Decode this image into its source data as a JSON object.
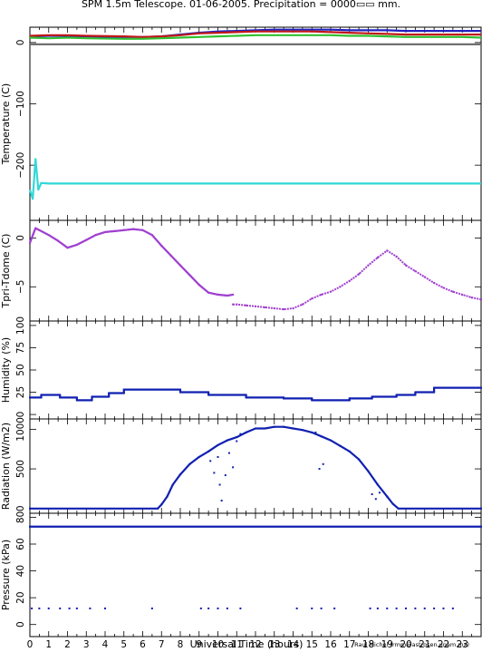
{
  "title": "SPM 1.5m Telescope. 01-06-2005. Precipitation = 0000▭▭ mm.",
  "credit": "Raul Michel (rmm@astrosen.unam.mx)",
  "colors": {
    "temp_blue": "#2020c0",
    "temp_red": "#c01818",
    "temp_green": "#30c030",
    "temp_gray": "#707070",
    "temp_cyan": "#30d8d8",
    "purple": "#a040d0",
    "navy": "#1020b0"
  },
  "chart_data": [
    {
      "id": "temperature",
      "type": "line",
      "ylabel": "Temperature (C)",
      "yticks": [
        0,
        -100,
        -200
      ],
      "ylim": [
        -290,
        25
      ],
      "xlim": [
        0,
        24
      ],
      "series": [
        {
          "color": "#2020c0",
          "x": [
            0,
            1,
            2,
            3,
            5,
            6,
            7,
            8,
            9,
            10,
            11,
            12,
            13,
            14,
            15,
            16,
            17,
            18,
            19,
            20,
            21,
            22,
            23,
            24
          ],
          "y": [
            10,
            11,
            11,
            10,
            9,
            9,
            10,
            13,
            16,
            18,
            19,
            20,
            21,
            21,
            21,
            21,
            20,
            20,
            20,
            19,
            19,
            19,
            19,
            19
          ]
        },
        {
          "color": "#c01818",
          "x": [
            0,
            1,
            2,
            3,
            5,
            6,
            7,
            8,
            9,
            10,
            11,
            12,
            13,
            14,
            15,
            16,
            17,
            18,
            19,
            20,
            21,
            22,
            23,
            24
          ],
          "y": [
            11,
            12,
            12,
            11,
            10,
            9,
            10,
            12,
            15,
            16,
            17,
            18,
            18,
            18,
            18,
            17,
            16,
            15,
            14,
            13,
            13,
            13,
            13,
            13
          ]
        },
        {
          "color": "#30c030",
          "x": [
            0,
            1,
            2,
            3,
            5,
            6,
            7,
            8,
            9,
            10,
            11,
            12,
            13,
            14,
            15,
            16,
            17,
            18,
            19,
            20,
            21,
            22,
            23,
            24
          ],
          "y": [
            8,
            7,
            8,
            7,
            6,
            6,
            7,
            8,
            9,
            10,
            11,
            12,
            12,
            12,
            12,
            12,
            11,
            11,
            10,
            9,
            9,
            9,
            9,
            8
          ]
        },
        {
          "color": "#707070",
          "x": [
            0,
            24
          ],
          "y": [
            -3,
            -3
          ]
        },
        {
          "color": "#30d8d8",
          "x": [
            0,
            0.15,
            0.3,
            0.45,
            0.6,
            1,
            24
          ],
          "y": [
            -240,
            -255,
            -190,
            -240,
            -229,
            -230,
            -230
          ]
        }
      ]
    },
    {
      "id": "tpri_tdome",
      "type": "scatter",
      "ylabel": "Tpri-Tdome (C)",
      "yticks": [
        0,
        -5
      ],
      "ylim": [
        -8.5,
        1.8
      ],
      "xlim": [
        0,
        24
      ],
      "series": [
        {
          "color": "#a040d0",
          "x": [
            0,
            0.3,
            0.5,
            1,
            1.5,
            2,
            2.5,
            3,
            3.5,
            4,
            4.5,
            5,
            5.5,
            6,
            6.5,
            7,
            7.5,
            8,
            8.5,
            9,
            9.5,
            10,
            10.5,
            10.8
          ],
          "y": [
            -0.5,
            1.0,
            0.8,
            0.3,
            -0.3,
            -1.0,
            -0.7,
            -0.2,
            0.3,
            0.6,
            0.7,
            0.8,
            0.9,
            0.8,
            0.3,
            -0.8,
            -1.8,
            -2.8,
            -3.8,
            -4.8,
            -5.6,
            -5.8,
            -5.9,
            -5.8
          ]
        },
        {
          "color": "#a040d0",
          "x": [
            10.8,
            11,
            11.5,
            12,
            12.5,
            13,
            13.5,
            14,
            14.5,
            15,
            15.5,
            16,
            16.5,
            17,
            17.5,
            18,
            18.5,
            19,
            19.5,
            20,
            20.5,
            21,
            21.5,
            22,
            22.5,
            23,
            23.5,
            24
          ],
          "y": [
            -6.8,
            -6.8,
            -6.9,
            -7.0,
            -7.1,
            -7.2,
            -7.3,
            -7.2,
            -6.8,
            -6.2,
            -5.8,
            -5.5,
            -5.0,
            -4.4,
            -3.7,
            -2.8,
            -2.0,
            -1.3,
            -1.9,
            -2.8,
            -3.4,
            -4.0,
            -4.6,
            -5.1,
            -5.5,
            -5.8,
            -6.1,
            -6.3
          ]
        }
      ]
    },
    {
      "id": "humidity",
      "type": "scatter",
      "ylabel": "Humidity (%)",
      "yticks": [
        0,
        25,
        50,
        75,
        100
      ],
      "ylim": [
        -5,
        105
      ],
      "xlim": [
        0,
        24
      ],
      "series": [
        {
          "color": "#1020b0",
          "x": [
            0,
            0.6,
            0.6,
            1.6,
            1.6,
            2.5,
            2.5,
            3.3,
            3.3,
            4.2,
            4.2,
            5.0,
            5.0,
            8.0,
            8.0,
            9.5,
            9.5,
            11.5,
            11.5,
            13.5,
            13.5,
            15.0,
            15.0,
            17.0,
            17.0,
            18.2,
            18.2,
            19.5,
            19.5,
            20.5,
            20.5,
            21.5,
            21.5,
            24
          ],
          "y": [
            19,
            19,
            22,
            22,
            19,
            19,
            16,
            16,
            20,
            20,
            24,
            24,
            28,
            28,
            25,
            25,
            22,
            22,
            19,
            19,
            18,
            18,
            16,
            16,
            18,
            18,
            20,
            20,
            22,
            22,
            25,
            25,
            30,
            30
          ]
        }
      ]
    },
    {
      "id": "radiation",
      "type": "scatter",
      "ylabel": "Radiation (W/m2)",
      "yticks": [
        0,
        500,
        1000
      ],
      "ylim": [
        -60,
        1130
      ],
      "xlim": [
        0,
        24
      ],
      "series": [
        {
          "color": "#1020b0",
          "x": [
            0,
            6.8,
            7.0,
            7.3,
            7.6,
            8,
            8.5,
            9,
            9.5,
            10,
            10.5,
            11,
            11.5,
            12,
            12.5,
            13,
            13.5,
            14,
            14.5,
            15,
            15.5,
            16,
            16.5,
            17,
            17.5,
            18,
            18.5,
            19,
            19.3,
            19.6,
            24
          ],
          "y": [
            0,
            0,
            50,
            150,
            300,
            430,
            560,
            650,
            720,
            800,
            860,
            900,
            960,
            1010,
            1010,
            1030,
            1030,
            1010,
            990,
            960,
            910,
            860,
            790,
            720,
            620,
            470,
            300,
            150,
            60,
            0,
            0
          ]
        },
        {
          "color": "#1020b0",
          "x": [
            9.6,
            9.8,
            10.0,
            10.1,
            10.2,
            10.4,
            10.6,
            10.8,
            11,
            11.2,
            15.2,
            15.4,
            15.6,
            18.2,
            18.4,
            18.6
          ],
          "y": [
            600,
            450,
            650,
            300,
            100,
            420,
            700,
            520,
            850,
            940,
            960,
            500,
            560,
            180,
            120,
            200
          ]
        }
      ]
    },
    {
      "id": "pressure",
      "type": "scatter",
      "ylabel": "Pressure (kPa)",
      "xlabel": "Universal Time (hours)",
      "yticks": [
        0,
        20,
        40,
        60,
        80
      ],
      "ylim": [
        -9,
        83
      ],
      "xlim": [
        0,
        24
      ],
      "xticks": [
        0,
        1,
        2,
        3,
        4,
        5,
        6,
        7,
        8,
        9,
        10,
        11,
        12,
        13,
        14,
        15,
        16,
        17,
        18,
        19,
        20,
        21,
        22,
        23
      ],
      "series": [
        {
          "color": "#1020b0",
          "x": [
            0,
            24
          ],
          "y": [
            73,
            73
          ]
        },
        {
          "color": "#1020b0",
          "x": [
            0.1,
            0.5,
            1.0,
            1.6,
            2.1,
            2.5,
            3.2,
            4.0,
            6.5,
            9.1,
            9.5,
            10.0,
            10.5,
            11.2,
            14.2,
            15.0,
            15.5,
            16.2,
            18.1,
            18.5,
            19.0,
            19.5,
            20.0,
            20.5,
            21.0,
            21.5,
            22.0,
            22.5
          ],
          "y": [
            12,
            12,
            12,
            12,
            12,
            12,
            12,
            12,
            12,
            12,
            12,
            12,
            12,
            12,
            12,
            12,
            12,
            12,
            12,
            12,
            12,
            12,
            12,
            12,
            12,
            12,
            12,
            12
          ]
        }
      ]
    }
  ]
}
